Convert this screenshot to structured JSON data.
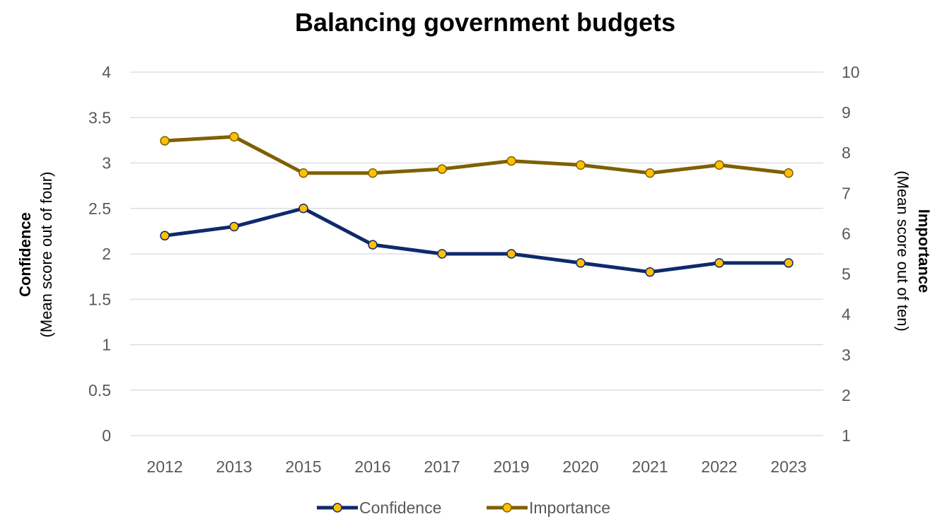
{
  "chart_data": {
    "type": "line",
    "title": "Balancing government budgets",
    "categories": [
      "2012",
      "2013",
      "2015",
      "2016",
      "2017",
      "2019",
      "2020",
      "2021",
      "2022",
      "2023"
    ],
    "y_left": {
      "label_bold": "Confidence",
      "label_sub": "(Mean score out of four)",
      "ylim": [
        0,
        4
      ],
      "ticks": [
        "0",
        "0.5",
        "1",
        "1.5",
        "2",
        "2.5",
        "3",
        "3.5",
        "4"
      ]
    },
    "y_right": {
      "label_bold": "Importance",
      "label_sub": "(Mean score out of ten)",
      "ylim": [
        1,
        10
      ],
      "ticks": [
        "1",
        "2",
        "3",
        "4",
        "5",
        "6",
        "7",
        "8",
        "9",
        "10"
      ]
    },
    "series": [
      {
        "name": "Confidence",
        "axis": "left",
        "color": "#0f2a6b",
        "values": [
          2.2,
          2.3,
          2.5,
          2.1,
          2.0,
          2.0,
          1.9,
          1.8,
          1.9,
          1.9
        ]
      },
      {
        "name": "Importance",
        "axis": "right",
        "color": "#7f6000",
        "values": [
          8.3,
          8.4,
          7.5,
          7.5,
          7.6,
          7.8,
          7.7,
          7.5,
          7.7,
          7.5
        ]
      }
    ],
    "marker_color": "#ffc000",
    "grid": true,
    "legend": "bottom"
  }
}
